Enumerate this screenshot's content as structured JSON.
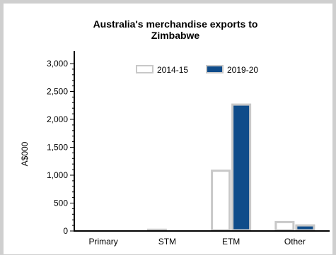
{
  "chart_data": {
    "type": "bar",
    "title_line1": "Australia's merchandise exports to",
    "title_line2": "Zimbabwe",
    "xlabel": "",
    "ylabel": "A$000",
    "categories": [
      "Primary",
      "STM",
      "ETM",
      "Other"
    ],
    "yticks": [
      "0",
      "500",
      "1,000",
      "1,500",
      "2,000",
      "2,500",
      "3,000"
    ],
    "ylim": [
      0,
      3000
    ],
    "grid": false,
    "legend_position": "top-right",
    "series": [
      {
        "name": "2014-15",
        "values": [
          3,
          22,
          1080,
          160
        ],
        "fill": "#ffffff",
        "stroke": "#c8c8c8"
      },
      {
        "name": "2019-20",
        "values": [
          3,
          2,
          2265,
          100
        ],
        "fill": "#0f4c8a",
        "stroke": "#c8c8c8"
      }
    ]
  }
}
